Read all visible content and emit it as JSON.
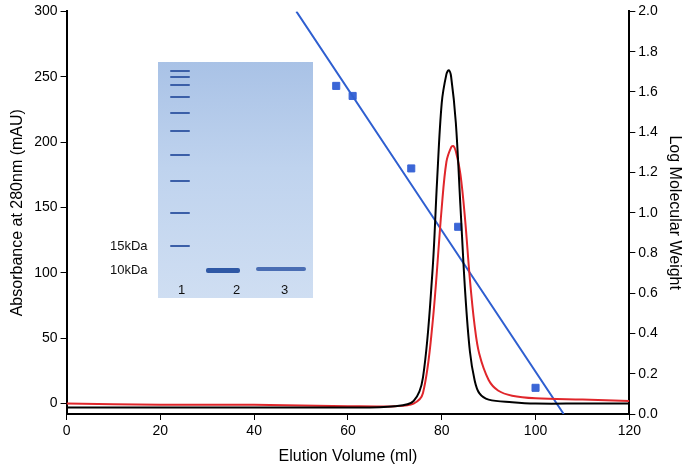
{
  "chart_data": {
    "type": "line",
    "x_label": "Elution Volume (ml)",
    "y_label": "Absorbance at 280nm (mAU)",
    "y2_label": "Log Molecular Weight",
    "xlim": [
      0,
      120
    ],
    "xticks": [
      0,
      20,
      40,
      60,
      80,
      100,
      120
    ],
    "ylim": [
      -8,
      300
    ],
    "yticks": [
      0,
      50,
      100,
      150,
      200,
      250,
      300
    ],
    "y2lim": [
      0,
      2
    ],
    "y2ticks": [
      {
        "value": 0,
        "label": "0.0"
      },
      {
        "value": 0.2,
        "label": "0.2"
      },
      {
        "value": 0.4,
        "label": "0.4"
      },
      {
        "value": 0.6,
        "label": "0.6"
      },
      {
        "value": 0.8,
        "label": "0.8"
      },
      {
        "value": 1,
        "label": "1.0"
      },
      {
        "value": 1.2,
        "label": "1.2"
      },
      {
        "value": 1.4,
        "label": "1.4"
      },
      {
        "value": 1.6,
        "label": "1.6"
      },
      {
        "value": 1.8,
        "label": "1.8"
      },
      {
        "value": 2,
        "label": "2.0"
      }
    ],
    "grid": false,
    "series": [
      {
        "type": "line",
        "color": "#000000",
        "line_style": "solid",
        "marker": "none",
        "x": [
          0,
          20,
          40,
          60,
          70,
          74,
          76,
          78,
          79,
          80,
          81,
          81.5,
          82,
          83,
          84,
          85,
          86,
          87,
          88,
          90,
          95,
          100,
          110,
          120
        ],
        "values": [
          -3,
          -3,
          -3,
          -3,
          -2,
          2,
          20,
          100,
          170,
          230,
          252,
          255,
          250,
          215,
          150,
          85,
          40,
          18,
          8,
          3,
          1,
          0,
          0,
          0
        ]
      },
      {
        "type": "line",
        "color": "#e0262b",
        "line_style": "solid",
        "marker": "none",
        "x": [
          0,
          20,
          40,
          60,
          70,
          74,
          76,
          78,
          80,
          81,
          82,
          82.5,
          83,
          84,
          85,
          86,
          87,
          88,
          90,
          92,
          95,
          100,
          110,
          120
        ],
        "values": [
          0,
          -1,
          -1,
          -2,
          -2,
          0,
          8,
          60,
          150,
          185,
          196,
          197,
          193,
          175,
          140,
          95,
          60,
          38,
          18,
          10,
          6,
          4,
          3,
          2
        ]
      },
      {
        "type": "line",
        "color": "#2f5fd0",
        "line_style": "solid",
        "marker": "none",
        "axis": "y2",
        "x": [
          49,
          106
        ],
        "values": [
          2,
          0
        ]
      },
      {
        "type": "scatter",
        "color": "#3b66d6",
        "marker": "square",
        "axis": "y2",
        "x": [
          57.5,
          61,
          73.5,
          83.5,
          100
        ],
        "values": [
          1.63,
          1.58,
          1.22,
          0.93,
          0.13
        ]
      }
    ],
    "inset": {
      "marker_labels": [
        "15kDa",
        "10kDa"
      ],
      "lane_labels": [
        "1",
        "2",
        "3"
      ]
    }
  }
}
